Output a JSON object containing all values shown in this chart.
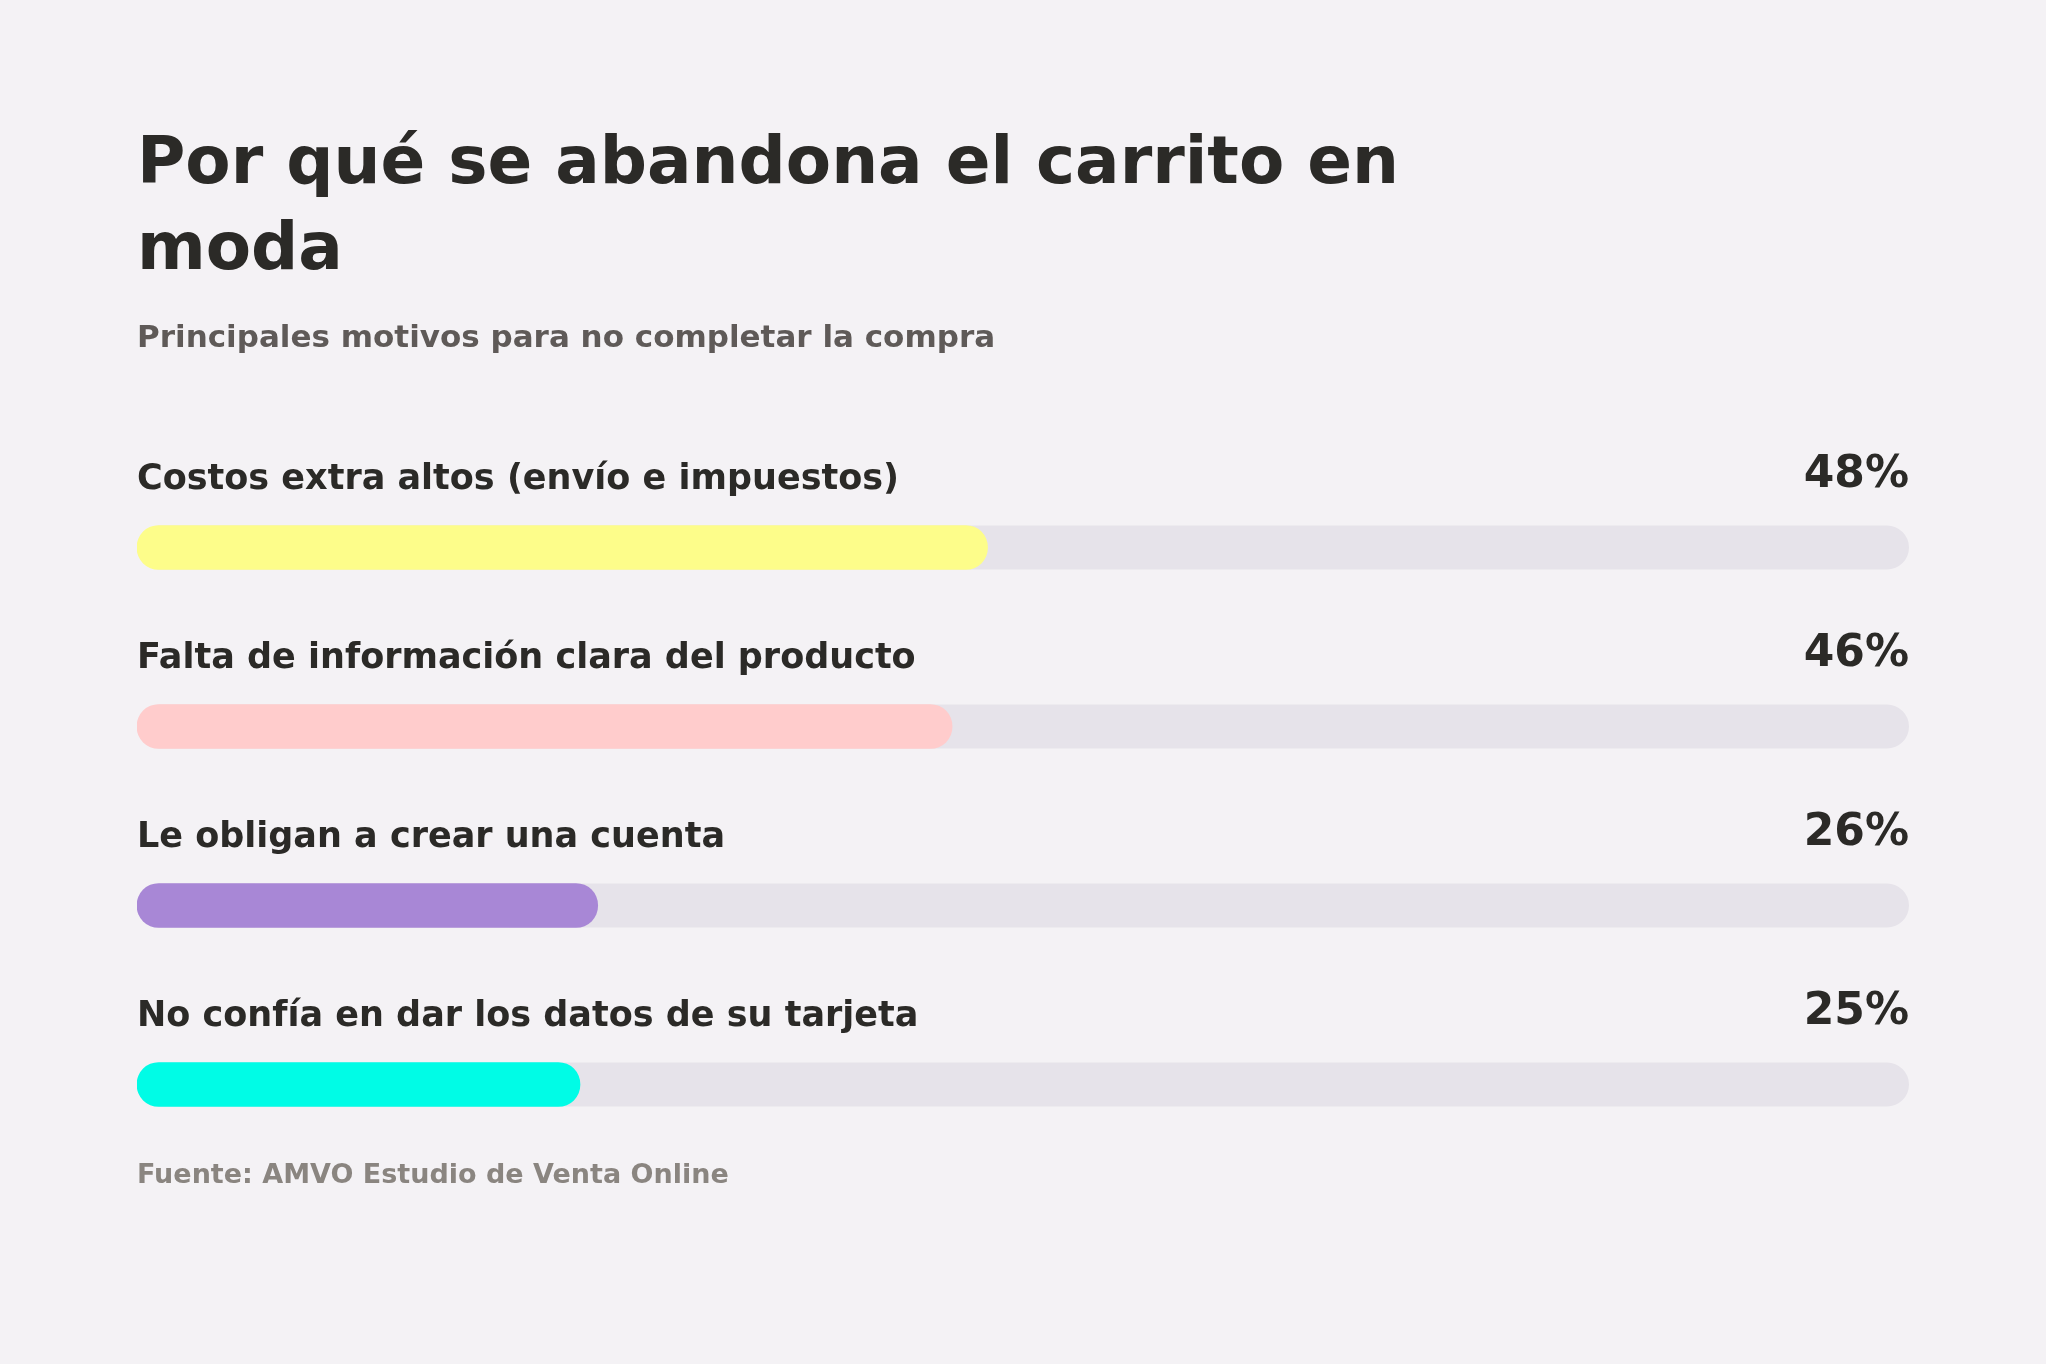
{
  "chart_data": {
    "type": "bar",
    "orientation": "horizontal",
    "title": "Por qué se abandona el carrito en moda",
    "subtitle": "Principales motivos para no completar la compra",
    "categories": [
      "Costos extra altos (envío e impuestos)",
      "Falta de información clara del producto",
      "Le obligan a crear una cuenta",
      "No confía en dar los datos de su tarjeta"
    ],
    "values": [
      48,
      46,
      26,
      25
    ],
    "colors": [
      "#fdfd8a",
      "#ffcccc",
      "#a887d6",
      "#00fce6"
    ],
    "value_labels": [
      "48%",
      "46%",
      "26%",
      "25%"
    ],
    "xlim": [
      0,
      100
    ],
    "tick_labels": "y",
    "annotations": [
      "Fuente: AMVO Estudio de Venta Online"
    ]
  }
}
